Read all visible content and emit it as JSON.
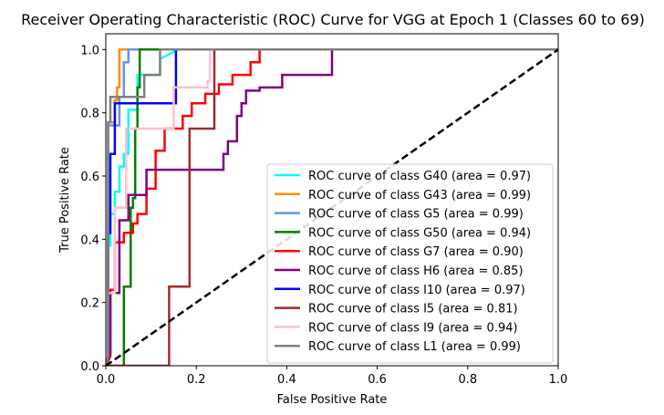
{
  "chart_data": {
    "type": "line",
    "title": "Receiver Operating Characteristic (ROC) Curve for VGG at Epoch 1 (Classes 60 to 69)",
    "xlabel": "False Positive Rate",
    "ylabel": "True Positive Rate",
    "xlim": [
      0.0,
      1.0
    ],
    "ylim": [
      0.0,
      1.05
    ],
    "xticks": [
      "0.0",
      "0.2",
      "0.4",
      "0.6",
      "0.8",
      "1.0"
    ],
    "yticks": [
      "0.0",
      "0.2",
      "0.4",
      "0.6",
      "0.8",
      "1.0"
    ],
    "grid": false,
    "legend_position": "lower right",
    "diagonal": {
      "x": [
        0,
        1
      ],
      "y": [
        0,
        1
      ],
      "color": "#000000",
      "style": "dashed"
    },
    "series": [
      {
        "name": "ROC curve of class G40 (area = 0.97)",
        "color": "#00ffff",
        "x": [
          0,
          0.005,
          0.005,
          0.01,
          0.01,
          0.02,
          0.02,
          0.03,
          0.03,
          0.04,
          0.04,
          0.05,
          0.05,
          0.07,
          0.07,
          0.12,
          0.12,
          0.16,
          1.0
        ],
        "y": [
          0,
          0.03,
          0.38,
          0.38,
          0.48,
          0.48,
          0.55,
          0.55,
          0.63,
          0.63,
          0.67,
          0.67,
          0.81,
          0.81,
          0.92,
          0.92,
          0.97,
          1.0,
          1.0
        ]
      },
      {
        "name": "ROC curve of class G43 (area = 0.99)",
        "color": "#ff8c00",
        "x": [
          0,
          0.005,
          0.005,
          0.02,
          0.02,
          0.025,
          0.025,
          0.03,
          0.03,
          1.0
        ],
        "y": [
          0,
          0.03,
          0.77,
          0.77,
          0.84,
          0.84,
          0.88,
          0.88,
          1.0,
          1.0
        ]
      },
      {
        "name": "ROC curve of class G5 (area = 0.99)",
        "color": "#6495ed",
        "x": [
          0,
          0.005,
          0.005,
          0.03,
          0.03,
          0.04,
          0.04,
          0.05,
          0.05,
          1.0
        ],
        "y": [
          0,
          0.03,
          0.76,
          0.76,
          0.85,
          0.85,
          0.96,
          0.96,
          1.0,
          1.0
        ]
      },
      {
        "name": "ROC curve of class G50 (area = 0.94)",
        "color": "#008000",
        "x": [
          0,
          0.04,
          0.04,
          0.055,
          0.055,
          0.06,
          0.06,
          0.065,
          0.065,
          0.07,
          0.07,
          0.075,
          0.075,
          1.0
        ],
        "y": [
          0,
          0.0,
          0.25,
          0.25,
          0.5,
          0.5,
          0.53,
          0.53,
          0.75,
          0.75,
          0.88,
          0.88,
          1.0,
          1.0
        ]
      },
      {
        "name": "ROC curve of class G7 (area = 0.90)",
        "color": "#ff0000",
        "x": [
          0,
          0.01,
          0.01,
          0.02,
          0.02,
          0.04,
          0.04,
          0.06,
          0.06,
          0.07,
          0.07,
          0.09,
          0.09,
          0.11,
          0.11,
          0.13,
          0.13,
          0.17,
          0.17,
          0.19,
          0.19,
          0.22,
          0.22,
          0.25,
          0.25,
          0.28,
          0.28,
          0.32,
          0.32,
          0.34,
          0.34,
          1.0
        ],
        "y": [
          0,
          0.03,
          0.24,
          0.24,
          0.39,
          0.39,
          0.42,
          0.42,
          0.45,
          0.45,
          0.48,
          0.48,
          0.56,
          0.56,
          0.68,
          0.68,
          0.75,
          0.75,
          0.79,
          0.79,
          0.83,
          0.83,
          0.86,
          0.86,
          0.89,
          0.89,
          0.92,
          0.92,
          0.96,
          0.96,
          1.0,
          1.0
        ]
      },
      {
        "name": "ROC curve of class H6 (area = 0.85)",
        "color": "#800080",
        "x": [
          0,
          0.01,
          0.01,
          0.03,
          0.03,
          0.05,
          0.05,
          0.09,
          0.09,
          0.26,
          0.26,
          0.27,
          0.27,
          0.29,
          0.29,
          0.3,
          0.3,
          0.31,
          0.31,
          0.34,
          0.34,
          0.39,
          0.39,
          0.5,
          0.5,
          1.0
        ],
        "y": [
          0,
          0.04,
          0.23,
          0.23,
          0.46,
          0.46,
          0.54,
          0.54,
          0.62,
          0.62,
          0.67,
          0.67,
          0.71,
          0.71,
          0.79,
          0.79,
          0.83,
          0.83,
          0.87,
          0.87,
          0.88,
          0.88,
          0.92,
          0.92,
          1.0,
          1.0
        ]
      },
      {
        "name": "ROC curve of class I10 (area = 0.97)",
        "color": "#0000ff",
        "x": [
          0,
          0.005,
          0.005,
          0.01,
          0.01,
          0.02,
          0.02,
          0.155,
          0.155,
          1.0
        ],
        "y": [
          0,
          0.03,
          0.42,
          0.42,
          0.67,
          0.67,
          0.83,
          0.83,
          1.0,
          1.0
        ]
      },
      {
        "name": "ROC curve of class I5 (area = 0.81)",
        "color": "#a52a2a",
        "x": [
          0,
          0.14,
          0.14,
          0.185,
          0.185,
          0.24,
          0.24,
          1.0
        ],
        "y": [
          0,
          0.0,
          0.25,
          0.25,
          0.75,
          0.75,
          1.0,
          1.0
        ]
      },
      {
        "name": "ROC curve of class I9 (area = 0.94)",
        "color": "#ffc0cb",
        "x": [
          0,
          0.005,
          0.005,
          0.02,
          0.02,
          0.045,
          0.045,
          0.08,
          0.08,
          0.15,
          0.15,
          0.225,
          0.225,
          0.23,
          0.23,
          1.0
        ],
        "y": [
          0,
          0.03,
          0.23,
          0.23,
          0.5,
          0.5,
          0.75,
          0.75,
          0.75,
          0.75,
          0.88,
          0.88,
          0.9,
          0.9,
          1.0,
          1.0
        ]
      },
      {
        "name": "ROC curve of class L1 (area = 0.99)",
        "color": "#808080",
        "x": [
          0,
          0.005,
          0.005,
          0.01,
          0.01,
          0.04,
          0.04,
          0.085,
          0.085,
          0.12,
          0.12,
          1.0
        ],
        "y": [
          0,
          0.03,
          0.77,
          0.77,
          0.85,
          0.85,
          0.85,
          0.85,
          0.92,
          0.92,
          1.0,
          1.0
        ]
      }
    ]
  }
}
